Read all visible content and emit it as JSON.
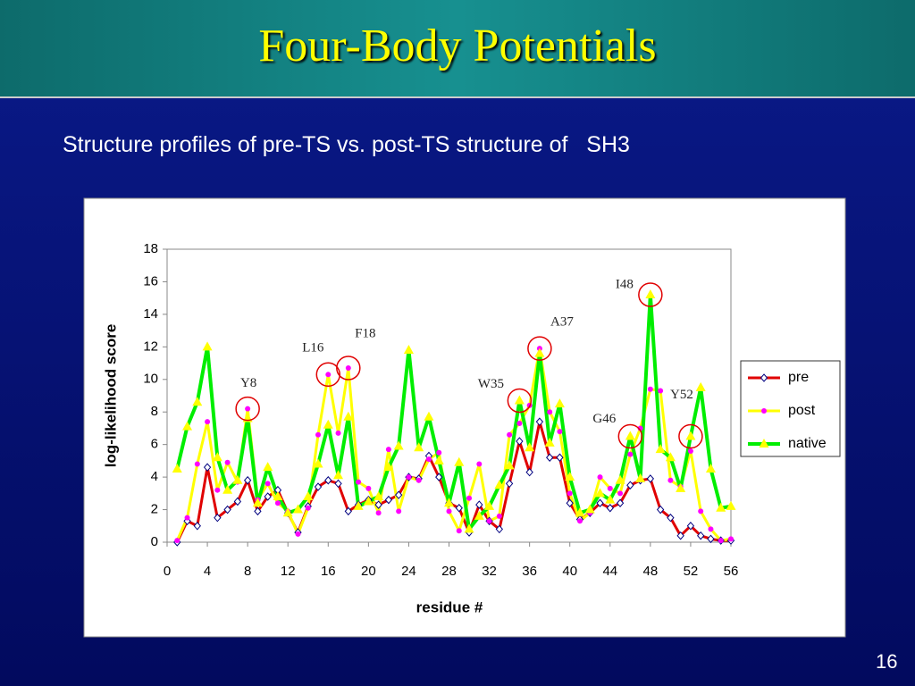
{
  "slide": {
    "title": "Four-Body Potentials",
    "subtitle": "Structure profiles of pre-TS vs. post-TS structure of   SH3",
    "page_number": "16"
  },
  "chart_data": {
    "type": "line",
    "xlabel": "residue #",
    "ylabel": "log-likelihood score",
    "xlim": [
      0,
      56
    ],
    "ylim": [
      0,
      18
    ],
    "xticks": [
      0,
      4,
      8,
      12,
      16,
      20,
      24,
      28,
      32,
      36,
      40,
      44,
      48,
      52,
      56
    ],
    "yticks": [
      0,
      2,
      4,
      6,
      8,
      10,
      12,
      14,
      16,
      18
    ],
    "grid": false,
    "legend": "right",
    "x": [
      1,
      2,
      3,
      4,
      5,
      6,
      7,
      8,
      9,
      10,
      11,
      12,
      13,
      14,
      15,
      16,
      17,
      18,
      19,
      20,
      21,
      22,
      23,
      24,
      25,
      26,
      27,
      28,
      29,
      30,
      31,
      32,
      33,
      34,
      35,
      36,
      37,
      38,
      39,
      40,
      41,
      42,
      43,
      44,
      45,
      46,
      47,
      48,
      49,
      50,
      51,
      52,
      53,
      54,
      55,
      56
    ],
    "series": [
      {
        "name": "pre",
        "color": "#e00000",
        "marker": "diamond",
        "marker_color": "#ffffff",
        "values": [
          0,
          1.3,
          1.0,
          4.6,
          1.5,
          2.0,
          2.5,
          3.8,
          1.9,
          2.8,
          3.2,
          1.8,
          0.6,
          2.2,
          3.4,
          3.8,
          3.6,
          1.9,
          2.3,
          2.6,
          2.3,
          2.6,
          2.9,
          4.0,
          3.9,
          5.3,
          4.0,
          2.4,
          2.1,
          0.6,
          2.3,
          1.3,
          0.8,
          3.6,
          6.2,
          4.3,
          7.4,
          5.2,
          5.2,
          2.4,
          1.4,
          1.8,
          2.4,
          2.1,
          2.4,
          3.5,
          3.8,
          3.9,
          2.0,
          1.5,
          0.4,
          1.0,
          0.4,
          0.2,
          0.1,
          0.1
        ]
      },
      {
        "name": "post",
        "color": "#ffff00",
        "marker": "circle",
        "marker_color": "#ff00ff",
        "values": [
          0.1,
          1.5,
          4.8,
          7.4,
          3.2,
          4.9,
          3.7,
          8.2,
          2.6,
          3.6,
          2.4,
          1.9,
          0.5,
          2.1,
          6.6,
          10.3,
          6.7,
          10.7,
          3.7,
          3.3,
          1.8,
          5.7,
          1.9,
          4.0,
          3.8,
          5.1,
          5.5,
          1.9,
          0.7,
          2.7,
          4.8,
          1.3,
          1.6,
          6.6,
          7.3,
          8.4,
          11.9,
          8.0,
          6.8,
          3.0,
          1.3,
          1.8,
          4.0,
          3.3,
          3.0,
          5.4,
          7.0,
          9.4,
          9.3,
          3.8,
          3.4,
          5.6,
          1.9,
          0.8,
          0.1,
          0.2
        ]
      },
      {
        "name": "native",
        "color": "#00ee00",
        "marker": "triangle",
        "marker_color": "#ffff00",
        "values": [
          4.5,
          7.1,
          8.6,
          12.0,
          5.2,
          3.2,
          3.8,
          7.6,
          2.4,
          4.6,
          2.8,
          1.8,
          2.0,
          2.8,
          4.8,
          7.2,
          4.1,
          7.7,
          2.2,
          2.5,
          2.8,
          4.6,
          5.9,
          11.8,
          5.8,
          7.7,
          5.0,
          2.4,
          4.9,
          0.8,
          1.6,
          2.2,
          3.5,
          4.7,
          8.7,
          5.8,
          11.6,
          6.1,
          8.5,
          4.0,
          1.8,
          2.0,
          3.0,
          2.6,
          3.8,
          6.5,
          3.9,
          15.2,
          5.7,
          5.2,
          3.3,
          6.5,
          9.5,
          4.5,
          2.1,
          2.2
        ]
      }
    ],
    "annotations": [
      {
        "text": "Y8",
        "x": 8
      },
      {
        "text": "L16",
        "x": 16
      },
      {
        "text": "F18",
        "x": 18
      },
      {
        "text": "W35",
        "x": 35
      },
      {
        "text": "A37",
        "x": 37
      },
      {
        "text": "G46",
        "x": 46
      },
      {
        "text": "I48",
        "x": 48
      },
      {
        "text": "Y52",
        "x": 52
      }
    ]
  }
}
